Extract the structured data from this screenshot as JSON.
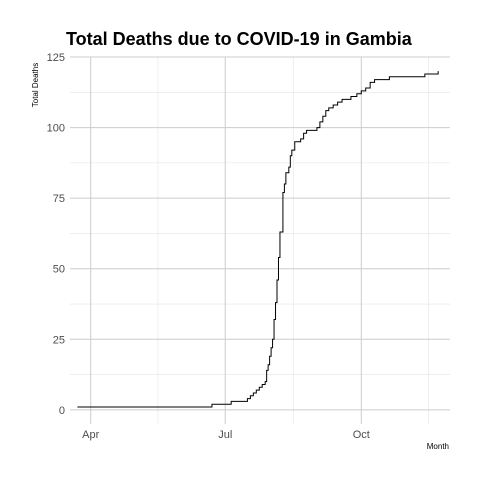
{
  "chart_data": {
    "type": "line",
    "title": "Total Deaths due to COVID-19 in Gambia",
    "xlabel": "Month",
    "ylabel": "Total Deaths",
    "xlim": [
      "2020-03-18",
      "2020-11-30"
    ],
    "ylim": [
      -5,
      125
    ],
    "x_ticks": [
      {
        "date": "2020-04-01",
        "label": "Apr"
      },
      {
        "date": "2020-07-01",
        "label": "Jul"
      },
      {
        "date": "2020-10-01",
        "label": "Oct"
      }
    ],
    "y_ticks": [
      0,
      25,
      50,
      75,
      100,
      125
    ],
    "grid": true,
    "legend": "none",
    "series": [
      {
        "points": [
          [
            "2020-03-23",
            1
          ],
          [
            "2020-04-20",
            1
          ],
          [
            "2020-05-20",
            1
          ],
          [
            "2020-06-20",
            1
          ],
          [
            "2020-06-22",
            2
          ],
          [
            "2020-07-04",
            2
          ],
          [
            "2020-07-05",
            3
          ],
          [
            "2020-07-15",
            3
          ],
          [
            "2020-07-16",
            4
          ],
          [
            "2020-07-18",
            5
          ],
          [
            "2020-07-20",
            6
          ],
          [
            "2020-07-22",
            7
          ],
          [
            "2020-07-24",
            8
          ],
          [
            "2020-07-26",
            9
          ],
          [
            "2020-07-28",
            10
          ],
          [
            "2020-07-29",
            14
          ],
          [
            "2020-07-30",
            16
          ],
          [
            "2020-07-31",
            19
          ],
          [
            "2020-08-01",
            22
          ],
          [
            "2020-08-02",
            25
          ],
          [
            "2020-08-03",
            32
          ],
          [
            "2020-08-04",
            38
          ],
          [
            "2020-08-05",
            46
          ],
          [
            "2020-08-06",
            54
          ],
          [
            "2020-08-07",
            63
          ],
          [
            "2020-08-09",
            77
          ],
          [
            "2020-08-10",
            80
          ],
          [
            "2020-08-11",
            84
          ],
          [
            "2020-08-13",
            86
          ],
          [
            "2020-08-14",
            90
          ],
          [
            "2020-08-15",
            92
          ],
          [
            "2020-08-17",
            95
          ],
          [
            "2020-08-21",
            96
          ],
          [
            "2020-08-23",
            98
          ],
          [
            "2020-08-25",
            99
          ],
          [
            "2020-09-01",
            100
          ],
          [
            "2020-09-03",
            102
          ],
          [
            "2020-09-05",
            104
          ],
          [
            "2020-09-07",
            106
          ],
          [
            "2020-09-09",
            107
          ],
          [
            "2020-09-12",
            108
          ],
          [
            "2020-09-15",
            109
          ],
          [
            "2020-09-18",
            110
          ],
          [
            "2020-09-24",
            111
          ],
          [
            "2020-09-28",
            112
          ],
          [
            "2020-10-01",
            113
          ],
          [
            "2020-10-04",
            114
          ],
          [
            "2020-10-07",
            116
          ],
          [
            "2020-10-10",
            117
          ],
          [
            "2020-10-20",
            118
          ],
          [
            "2020-11-13",
            119
          ],
          [
            "2020-11-22",
            120
          ]
        ]
      }
    ]
  }
}
